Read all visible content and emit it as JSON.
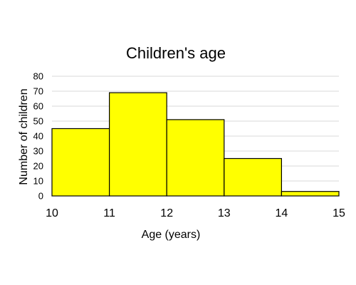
{
  "chart_data": {
    "type": "bar",
    "title": "Children's age",
    "xlabel": "Age (years)",
    "ylabel": "Number of children",
    "bin_edges": [
      10,
      11,
      12,
      13,
      14,
      15
    ],
    "values": [
      45,
      69,
      51,
      25,
      3
    ],
    "ylim": [
      0,
      80
    ],
    "y_ticks": [
      0,
      10,
      20,
      30,
      40,
      50,
      60,
      70,
      80
    ],
    "x_ticks": [
      10,
      11,
      12,
      13,
      14,
      15
    ],
    "grid": true,
    "legend": "none",
    "bar_color": "#ffff00",
    "bar_edge_color": "#000000",
    "grid_color": "#d9d9d9"
  }
}
